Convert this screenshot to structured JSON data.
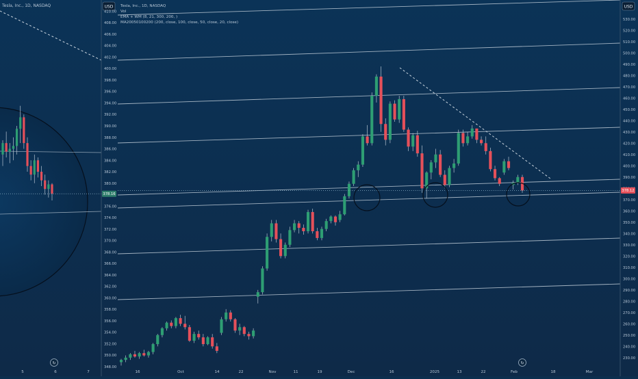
{
  "colors": {
    "bg_top": "#0b3357",
    "bg_bottom": "#0e2a48",
    "up": "#2e9e73",
    "down": "#e5505a",
    "wick": "#b7c4d2",
    "line": "#c9d4de",
    "axis_text": "#b8c7d6",
    "price_badge": "#2e7d6b"
  },
  "left_panel": {
    "title": "Tesla, Inc., 1D, NASDAQ",
    "currency": "USD",
    "price_label": "378.16",
    "y_ticks": [
      348,
      350,
      352,
      354,
      356,
      358,
      360,
      362,
      364,
      366,
      368,
      370,
      372,
      374,
      376,
      378,
      380,
      382,
      384,
      386,
      388,
      390,
      392,
      394,
      396,
      398,
      400,
      402,
      404,
      406,
      408,
      410
    ],
    "x_ticks": [
      "5",
      "6",
      "7"
    ],
    "tv_logo": "tradingview-logo-icon"
  },
  "main_panel": {
    "title": "Tesla, Inc., 1D, NASDAQ",
    "currency": "USD",
    "legend_lines": [
      "Vol",
      "EMA + WM (8, 21, 300, 200, )",
      "MA20050100200 (200, close, 100, close, 50, close, 20, close)"
    ],
    "price_label": "378.12",
    "y_ticks": [
      230,
      240,
      250,
      260,
      270,
      280,
      290,
      300,
      310,
      320,
      330,
      340,
      350,
      360,
      370,
      380,
      390,
      400,
      410,
      420,
      430,
      440,
      450,
      460,
      470,
      480,
      490,
      500,
      510,
      520,
      530
    ],
    "x_ticks": [
      "16",
      "Oct",
      "14",
      "22",
      "Nov",
      "11",
      "19",
      "Dec",
      "16",
      "2025",
      "13",
      "22",
      "Feb",
      "18",
      "Mar"
    ],
    "tv_logo": "tradingview-logo-icon"
  },
  "chart_data": [
    {
      "type": "candlestick",
      "title": "Tesla, Inc., 1D, NASDAQ",
      "ylabel": "USD",
      "ylim": [
        348,
        411
      ],
      "x_ticks": [
        "5",
        "6",
        "7"
      ],
      "last_price": 378.16,
      "candles": [
        {
          "o": 385.0,
          "h": 387.5,
          "l": 383.0,
          "c": 387.0
        },
        {
          "o": 387.0,
          "h": 389.0,
          "l": 384.5,
          "c": 385.5
        },
        {
          "o": 385.5,
          "h": 387.0,
          "l": 383.5,
          "c": 386.0
        },
        {
          "o": 386.0,
          "h": 388.0,
          "l": 384.0,
          "c": 386.5
        },
        {
          "o": 386.5,
          "h": 390.0,
          "l": 385.0,
          "c": 389.5
        },
        {
          "o": 389.5,
          "h": 393.5,
          "l": 387.0,
          "c": 391.5
        },
        {
          "o": 391.5,
          "h": 392.0,
          "l": 386.0,
          "c": 387.0
        },
        {
          "o": 387.0,
          "h": 388.0,
          "l": 382.0,
          "c": 383.0
        },
        {
          "o": 383.0,
          "h": 384.0,
          "l": 380.5,
          "c": 381.5
        },
        {
          "o": 381.5,
          "h": 385.0,
          "l": 380.0,
          "c": 384.0
        },
        {
          "o": 384.0,
          "h": 384.5,
          "l": 381.0,
          "c": 382.0
        },
        {
          "o": 382.0,
          "h": 383.0,
          "l": 379.5,
          "c": 380.5
        },
        {
          "o": 380.5,
          "h": 381.5,
          "l": 378.0,
          "c": 379.0
        },
        {
          "o": 379.0,
          "h": 380.5,
          "l": 377.5,
          "c": 379.8
        },
        {
          "o": 379.8,
          "h": 380.0,
          "l": 377.0,
          "c": 378.16
        }
      ]
    },
    {
      "type": "candlestick",
      "title": "Tesla, Inc., 1D, NASDAQ",
      "ylabel": "USD",
      "ylim": [
        222,
        542
      ],
      "x_ticks": [
        "16",
        "Oct",
        "14",
        "22",
        "Nov",
        "11",
        "19",
        "Dec",
        "16",
        "2025",
        "13",
        "22",
        "Feb",
        "18",
        "Mar"
      ],
      "last_price": 378.12,
      "candles": [
        {
          "o": 226,
          "h": 229,
          "l": 223,
          "c": 228
        },
        {
          "o": 228,
          "h": 232,
          "l": 226,
          "c": 230
        },
        {
          "o": 230,
          "h": 234,
          "l": 228,
          "c": 233
        },
        {
          "o": 233,
          "h": 236,
          "l": 230,
          "c": 231
        },
        {
          "o": 231,
          "h": 235,
          "l": 229,
          "c": 234
        },
        {
          "o": 234,
          "h": 237,
          "l": 231,
          "c": 232
        },
        {
          "o": 232,
          "h": 236,
          "l": 230,
          "c": 235
        },
        {
          "o": 235,
          "h": 243,
          "l": 233,
          "c": 242
        },
        {
          "o": 242,
          "h": 251,
          "l": 240,
          "c": 250
        },
        {
          "o": 250,
          "h": 257,
          "l": 248,
          "c": 256
        },
        {
          "o": 256,
          "h": 262,
          "l": 254,
          "c": 261
        },
        {
          "o": 261,
          "h": 263,
          "l": 256,
          "c": 258
        },
        {
          "o": 258,
          "h": 266,
          "l": 256,
          "c": 265
        },
        {
          "o": 265,
          "h": 268,
          "l": 258,
          "c": 260
        },
        {
          "o": 260,
          "h": 267,
          "l": 255,
          "c": 257
        },
        {
          "o": 257,
          "h": 259,
          "l": 244,
          "c": 245
        },
        {
          "o": 245,
          "h": 253,
          "l": 243,
          "c": 251
        },
        {
          "o": 251,
          "h": 254,
          "l": 246,
          "c": 248
        },
        {
          "o": 248,
          "h": 251,
          "l": 240,
          "c": 242
        },
        {
          "o": 242,
          "h": 249,
          "l": 241,
          "c": 248
        },
        {
          "o": 248,
          "h": 251,
          "l": 238,
          "c": 240
        },
        {
          "o": 240,
          "h": 243,
          "l": 234,
          "c": 236
        },
        {
          "o": 252,
          "h": 266,
          "l": 250,
          "c": 264
        },
        {
          "o": 264,
          "h": 273,
          "l": 262,
          "c": 270
        },
        {
          "o": 270,
          "h": 272,
          "l": 262,
          "c": 264
        },
        {
          "o": 264,
          "h": 265,
          "l": 252,
          "c": 254
        },
        {
          "o": 254,
          "h": 260,
          "l": 250,
          "c": 257
        },
        {
          "o": 257,
          "h": 258,
          "l": 249,
          "c": 251
        },
        {
          "o": 251,
          "h": 253,
          "l": 246,
          "c": 249
        },
        {
          "o": 249,
          "h": 256,
          "l": 247,
          "c": 254
        },
        {
          "o": 284,
          "h": 290,
          "l": 278,
          "c": 288
        },
        {
          "o": 288,
          "h": 311,
          "l": 286,
          "c": 309
        },
        {
          "o": 309,
          "h": 340,
          "l": 307,
          "c": 337
        },
        {
          "o": 337,
          "h": 352,
          "l": 333,
          "c": 349
        },
        {
          "o": 349,
          "h": 352,
          "l": 332,
          "c": 335
        },
        {
          "o": 335,
          "h": 340,
          "l": 318,
          "c": 320
        },
        {
          "o": 320,
          "h": 332,
          "l": 318,
          "c": 330
        },
        {
          "o": 330,
          "h": 346,
          "l": 328,
          "c": 343
        },
        {
          "o": 343,
          "h": 352,
          "l": 341,
          "c": 349
        },
        {
          "o": 349,
          "h": 351,
          "l": 340,
          "c": 345
        },
        {
          "o": 345,
          "h": 348,
          "l": 339,
          "c": 342
        },
        {
          "o": 342,
          "h": 361,
          "l": 340,
          "c": 359
        },
        {
          "o": 359,
          "h": 362,
          "l": 340,
          "c": 342
        },
        {
          "o": 342,
          "h": 345,
          "l": 334,
          "c": 336
        },
        {
          "o": 336,
          "h": 346,
          "l": 334,
          "c": 344
        },
        {
          "o": 344,
          "h": 353,
          "l": 342,
          "c": 351
        },
        {
          "o": 351,
          "h": 356,
          "l": 349,
          "c": 355
        },
        {
          "o": 355,
          "h": 356,
          "l": 347,
          "c": 350
        },
        {
          "o": 352,
          "h": 360,
          "l": 350,
          "c": 357
        },
        {
          "o": 357,
          "h": 375,
          "l": 356,
          "c": 373
        },
        {
          "o": 373,
          "h": 386,
          "l": 371,
          "c": 384
        },
        {
          "o": 384,
          "h": 398,
          "l": 382,
          "c": 396
        },
        {
          "o": 396,
          "h": 404,
          "l": 390,
          "c": 401
        },
        {
          "o": 401,
          "h": 428,
          "l": 399,
          "c": 426
        },
        {
          "o": 426,
          "h": 436,
          "l": 418,
          "c": 420
        },
        {
          "o": 420,
          "h": 465,
          "l": 418,
          "c": 462
        },
        {
          "o": 462,
          "h": 481,
          "l": 456,
          "c": 479
        },
        {
          "o": 479,
          "h": 488,
          "l": 430,
          "c": 437
        },
        {
          "o": 437,
          "h": 442,
          "l": 418,
          "c": 423
        },
        {
          "o": 423,
          "h": 457,
          "l": 420,
          "c": 455
        },
        {
          "o": 455,
          "h": 458,
          "l": 439,
          "c": 441
        },
        {
          "o": 441,
          "h": 462,
          "l": 438,
          "c": 459
        },
        {
          "o": 459,
          "h": 462,
          "l": 430,
          "c": 432
        },
        {
          "o": 432,
          "h": 434,
          "l": 413,
          "c": 417
        },
        {
          "o": 417,
          "h": 429,
          "l": 413,
          "c": 427
        },
        {
          "o": 427,
          "h": 431,
          "l": 408,
          "c": 411
        },
        {
          "o": 411,
          "h": 418,
          "l": 376,
          "c": 380
        },
        {
          "o": 380,
          "h": 395,
          "l": 371,
          "c": 394
        },
        {
          "o": 394,
          "h": 405,
          "l": 388,
          "c": 403
        },
        {
          "o": 403,
          "h": 415,
          "l": 398,
          "c": 410
        },
        {
          "o": 410,
          "h": 414,
          "l": 390,
          "c": 392
        },
        {
          "o": 392,
          "h": 396,
          "l": 380,
          "c": 383
        },
        {
          "o": 383,
          "h": 400,
          "l": 381,
          "c": 398
        },
        {
          "o": 398,
          "h": 406,
          "l": 394,
          "c": 402
        },
        {
          "o": 402,
          "h": 432,
          "l": 400,
          "c": 429
        },
        {
          "o": 429,
          "h": 432,
          "l": 417,
          "c": 420
        },
        {
          "o": 420,
          "h": 430,
          "l": 418,
          "c": 426
        },
        {
          "o": 426,
          "h": 436,
          "l": 424,
          "c": 433
        },
        {
          "o": 433,
          "h": 433,
          "l": 420,
          "c": 423
        },
        {
          "o": 423,
          "h": 426,
          "l": 418,
          "c": 420
        },
        {
          "o": 420,
          "h": 426,
          "l": 410,
          "c": 413
        },
        {
          "o": 413,
          "h": 416,
          "l": 395,
          "c": 397
        },
        {
          "o": 397,
          "h": 400,
          "l": 387,
          "c": 389
        },
        {
          "o": 389,
          "h": 390,
          "l": 382,
          "c": 384
        },
        {
          "o": 394,
          "h": 406,
          "l": 392,
          "c": 404
        },
        {
          "o": 404,
          "h": 408,
          "l": 396,
          "c": 398
        },
        {
          "o": 383,
          "h": 387,
          "l": 379,
          "c": 385
        },
        {
          "o": 385,
          "h": 392,
          "l": 383,
          "c": 390
        },
        {
          "o": 390,
          "h": 392,
          "l": 376,
          "c": 378.12
        }
      ]
    }
  ]
}
